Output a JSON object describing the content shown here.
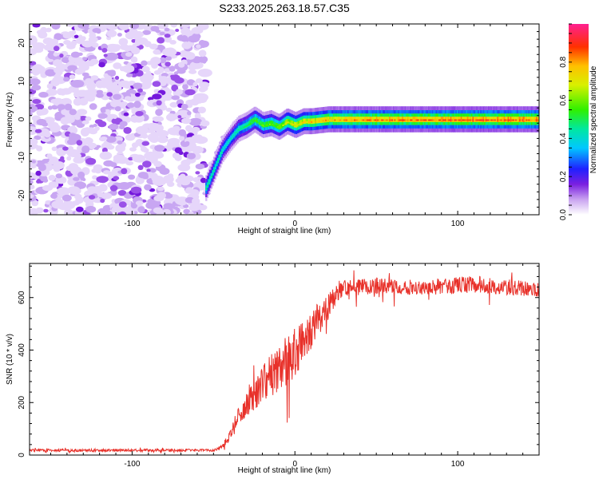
{
  "page_title": "S233.2025.263.18.57.C35",
  "chart_data": [
    {
      "type": "heatmap",
      "title": "S233.2025.263.18.57.C35",
      "xlabel": "Height of straight line (km)",
      "ylabel": "Frequency (Hz)",
      "xlim": [
        -163,
        150
      ],
      "ylim": [
        -25,
        25
      ],
      "x_ticks": [
        -100,
        0,
        100
      ],
      "y_ticks": [
        -20,
        -10,
        0,
        10,
        20
      ],
      "colorbar": {
        "label": "Normalized spectral amplitude",
        "range": [
          0,
          1
        ],
        "ticks": [
          0.0,
          0.2,
          0.4,
          0.6,
          0.8
        ],
        "tick_labels": [
          "0.0",
          "0.2",
          "0.4",
          "0.6",
          "0.8"
        ]
      },
      "noise_region": {
        "x_from": -163,
        "x_to": -55,
        "freq_from": -25,
        "freq_to": 25,
        "level": "low (0.0-0.2)"
      },
      "signal_track": [
        {
          "x": -55,
          "freq": -18
        },
        {
          "x": -50,
          "freq": -13
        },
        {
          "x": -45,
          "freq": -8
        },
        {
          "x": -40,
          "freq": -5
        },
        {
          "x": -35,
          "freq": -2.5
        },
        {
          "x": -30,
          "freq": -1.5
        },
        {
          "x": -25,
          "freq": 0
        },
        {
          "x": -20,
          "freq": -1.5
        },
        {
          "x": -15,
          "freq": -1
        },
        {
          "x": -10,
          "freq": -2
        },
        {
          "x": -5,
          "freq": -0.5
        },
        {
          "x": 0,
          "freq": -1.5
        },
        {
          "x": 5,
          "freq": -0.5
        },
        {
          "x": 10,
          "freq": -0.5
        },
        {
          "x": 20,
          "freq": 0
        },
        {
          "x": 40,
          "freq": 0
        },
        {
          "x": 80,
          "freq": 0
        },
        {
          "x": 120,
          "freq": 0
        },
        {
          "x": 150,
          "freq": 0
        }
      ],
      "signal_amplitude": [
        {
          "x": -55,
          "amp": 0.45
        },
        {
          "x": -40,
          "amp": 0.4
        },
        {
          "x": -25,
          "amp": 0.55
        },
        {
          "x": -10,
          "amp": 0.6
        },
        {
          "x": 0,
          "amp": 0.7
        },
        {
          "x": 10,
          "amp": 0.75
        },
        {
          "x": 30,
          "amp": 0.8
        },
        {
          "x": 60,
          "amp": 0.82
        },
        {
          "x": 100,
          "amp": 0.85
        },
        {
          "x": 150,
          "amp": 0.85
        }
      ]
    },
    {
      "type": "line",
      "xlabel": "Height of straight line (km)",
      "ylabel": "SNR (10 * v/v)",
      "xlim": [
        -163,
        150
      ],
      "ylim": [
        0,
        730
      ],
      "x_ticks": [
        -100,
        0,
        100
      ],
      "y_ticks": [
        0,
        200,
        400,
        600
      ],
      "series": [
        {
          "name": "SNR",
          "color": "#e8312a",
          "envelope": [
            {
              "x": -163,
              "mean": 18,
              "spread": 10
            },
            {
              "x": -100,
              "mean": 18,
              "spread": 10
            },
            {
              "x": -50,
              "mean": 18,
              "spread": 10
            },
            {
              "x": -45,
              "mean": 30,
              "spread": 15
            },
            {
              "x": -40,
              "mean": 70,
              "spread": 40
            },
            {
              "x": -35,
              "mean": 140,
              "spread": 80
            },
            {
              "x": -30,
              "mean": 200,
              "spread": 110
            },
            {
              "x": -25,
              "mean": 230,
              "spread": 120
            },
            {
              "x": -20,
              "mean": 270,
              "spread": 140
            },
            {
              "x": -15,
              "mean": 300,
              "spread": 170
            },
            {
              "x": -10,
              "mean": 330,
              "spread": 180
            },
            {
              "x": -5,
              "mean": 360,
              "spread": 190
            },
            {
              "x": 0,
              "mean": 390,
              "spread": 190
            },
            {
              "x": 5,
              "mean": 430,
              "spread": 170
            },
            {
              "x": 10,
              "mean": 480,
              "spread": 150
            },
            {
              "x": 20,
              "mean": 560,
              "spread": 100
            },
            {
              "x": 25,
              "mean": 610,
              "spread": 70
            },
            {
              "x": 30,
              "mean": 635,
              "spread": 60
            },
            {
              "x": 50,
              "mean": 645,
              "spread": 60
            },
            {
              "x": 80,
              "mean": 640,
              "spread": 60
            },
            {
              "x": 110,
              "mean": 650,
              "spread": 65
            },
            {
              "x": 130,
              "mean": 640,
              "spread": 60
            },
            {
              "x": 150,
              "mean": 630,
              "spread": 55
            }
          ]
        }
      ]
    }
  ]
}
